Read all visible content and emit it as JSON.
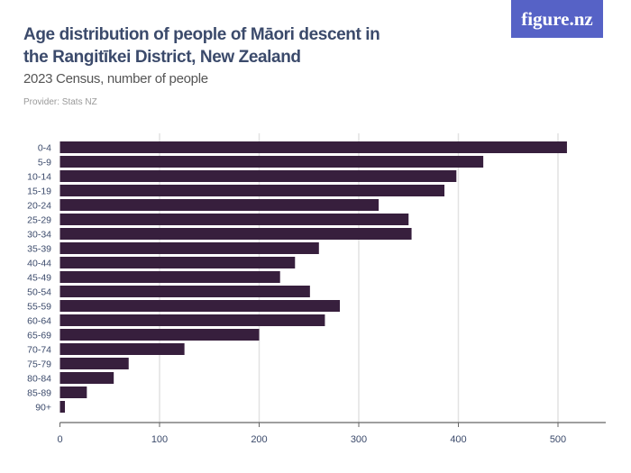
{
  "logo": "figure.nz",
  "chart_data": {
    "type": "bar",
    "orientation": "horizontal",
    "title": "Age distribution of people of Māori descent in the Rangitīkei District, New Zealand",
    "subtitle": "2023 Census, number of people",
    "provider": "Provider: Stats NZ",
    "categories": [
      "0-4",
      "5-9",
      "10-14",
      "15-19",
      "20-24",
      "25-29",
      "30-34",
      "35-39",
      "40-44",
      "45-49",
      "50-54",
      "55-59",
      "60-64",
      "65-69",
      "70-74",
      "75-79",
      "80-84",
      "85-89",
      "90+"
    ],
    "values": [
      509,
      425,
      398,
      386,
      320,
      350,
      353,
      260,
      236,
      221,
      251,
      281,
      266,
      200,
      125,
      69,
      54,
      27,
      5
    ],
    "xlim": [
      0,
      550
    ],
    "xticks": [
      0,
      100,
      200,
      300,
      400,
      500
    ],
    "grid": true,
    "bar_color": "#371f3d"
  }
}
